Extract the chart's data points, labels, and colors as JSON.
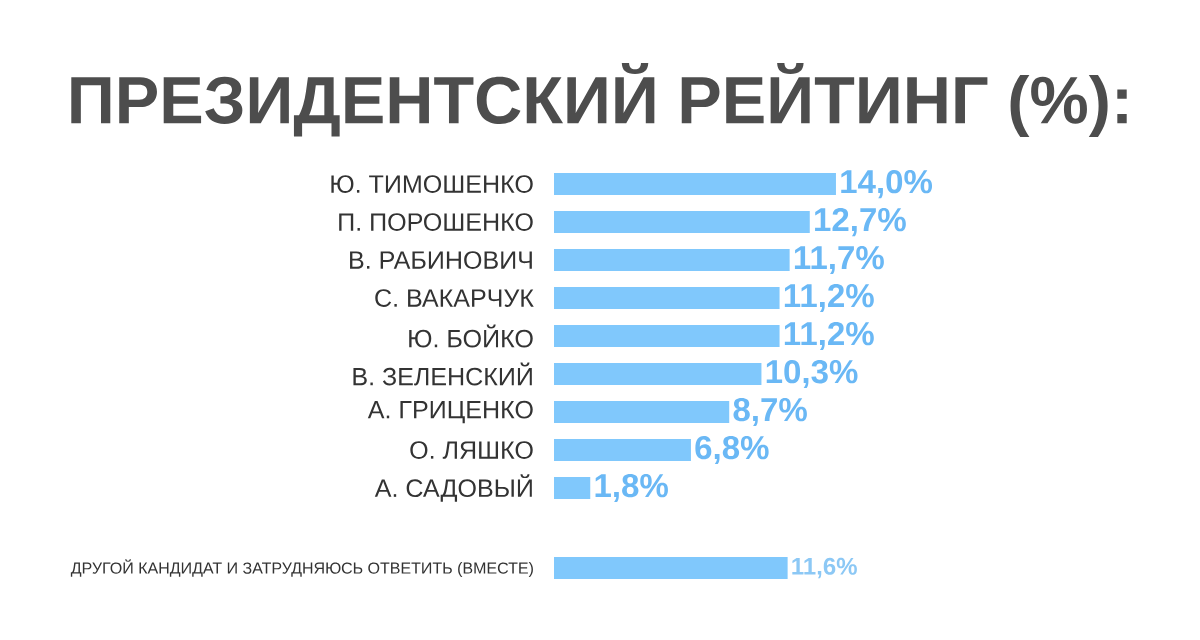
{
  "chart_data": [
    {
      "type": "bar",
      "orientation": "horizontal",
      "title": "ПРЕЗИДЕНТСКИЙ РЕЙТИНГ (%):",
      "categories": [
        "Ю. ТИМОШЕНКО",
        "П. ПОРОШЕНКО",
        "В. РАБИНОВИЧ",
        "С. ВАКАРЧУК",
        "Ю. БОЙКО",
        "В. ЗЕЛЕНСКИЙ",
        "А. ГРИЦЕНКО",
        "О. ЛЯШКО",
        "А. САДОВЫЙ"
      ],
      "values": [
        14.0,
        12.7,
        11.7,
        11.2,
        11.2,
        10.3,
        8.7,
        6.8,
        1.8
      ],
      "value_labels": [
        "14,0%",
        "12,7%",
        "11,7%",
        "11,2%",
        "11,2%",
        "10,3%",
        "8,7%",
        "6,8%",
        "1,8%"
      ],
      "color": "#80c8fc"
    },
    {
      "type": "bar",
      "orientation": "horizontal",
      "categories": [
        "ДРУГОЙ КАНДИДАТ И ЗАТРУДНЯЮСЬ ОТВЕТИТЬ (ВМЕСТЕ)"
      ],
      "values": [
        11.6
      ],
      "value_labels": [
        "11,6%"
      ],
      "color": "#80c8fc"
    }
  ]
}
